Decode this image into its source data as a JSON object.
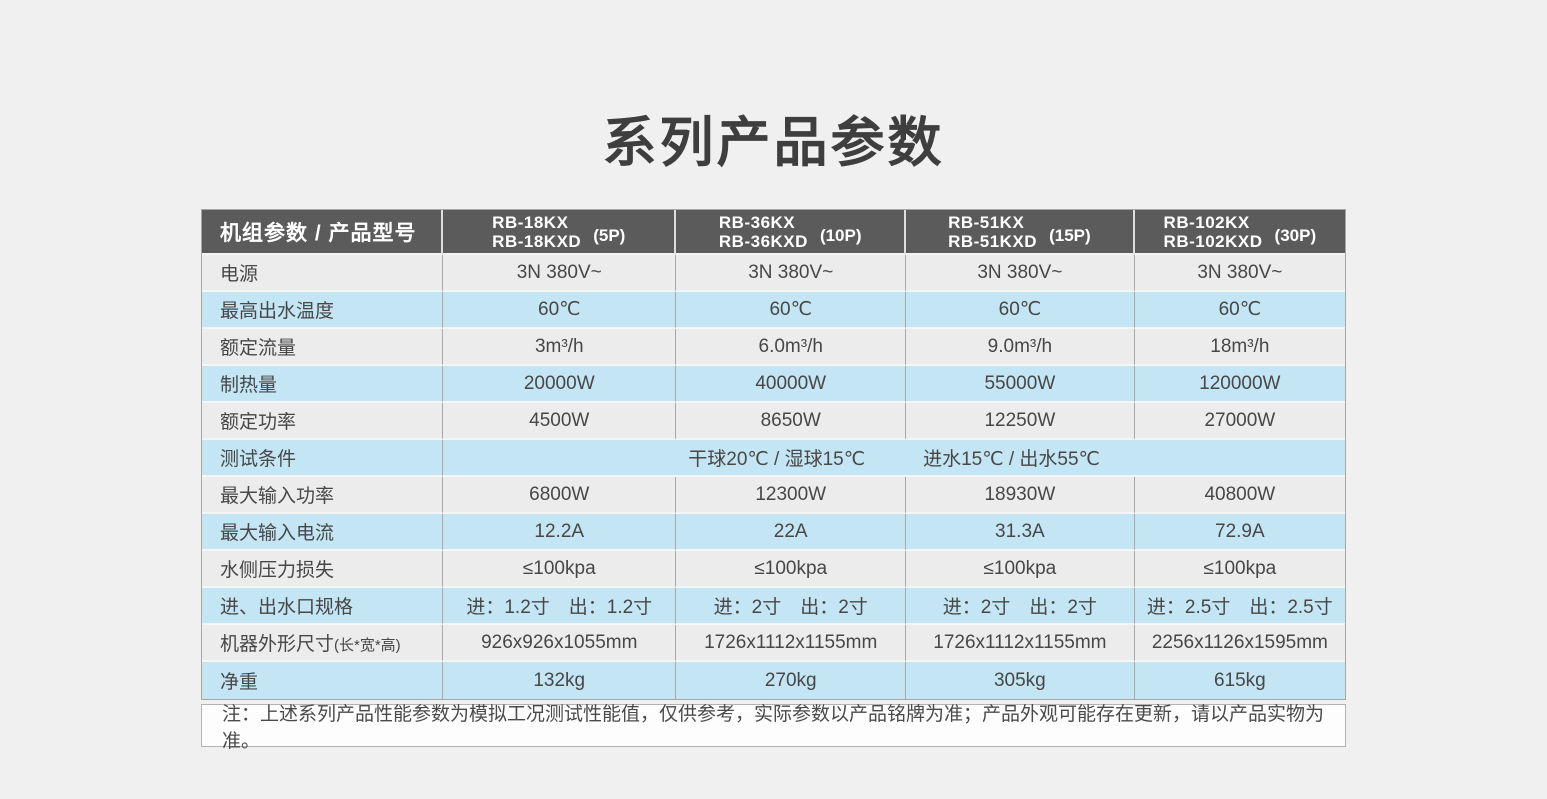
{
  "title": "系列产品参数",
  "colors": {
    "page_bg": "#f0f0f0",
    "header_bg": "#5b5b5b",
    "header_text": "#ffffff",
    "row_highlight_blue": "#c4e5f4",
    "row_plain_gray": "#ececec",
    "text_dark": "#474747",
    "border_gray": "#a6a6a6"
  },
  "table": {
    "header": {
      "param_label": "机组参数 / 产品型号",
      "models": [
        {
          "line1": "RB-18KX",
          "line2": "RB-18KXD",
          "power": "(5P)"
        },
        {
          "line1": "RB-36KX",
          "line2": "RB-36KXD",
          "power": "(10P)"
        },
        {
          "line1": "RB-51KX",
          "line2": "RB-51KXD",
          "power": "(15P)"
        },
        {
          "line1": "RB-102KX",
          "line2": "RB-102KXD",
          "power": "(30P)"
        }
      ]
    },
    "rows": [
      {
        "label": "电源",
        "highlight": false,
        "values": [
          "3N 380V~",
          "3N 380V~",
          "3N 380V~",
          "3N 380V~"
        ]
      },
      {
        "label": "最高出水温度",
        "highlight": true,
        "values": [
          "60℃",
          "60℃",
          "60℃",
          "60℃"
        ]
      },
      {
        "label": "额定流量",
        "highlight": false,
        "values": [
          "3m³/h",
          "6.0m³/h",
          "9.0m³/h",
          "18m³/h"
        ]
      },
      {
        "label": "制热量",
        "highlight": true,
        "values": [
          "20000W",
          "40000W",
          "55000W",
          "120000W"
        ]
      },
      {
        "label": "额定功率",
        "highlight": false,
        "values": [
          "4500W",
          "8650W",
          "12250W",
          "27000W"
        ]
      },
      {
        "label": "测试条件",
        "highlight": true,
        "merged": true,
        "values": [
          "干球20℃ / 湿球15℃",
          "进水15℃ / 出水55℃"
        ]
      },
      {
        "label": "最大输入功率",
        "highlight": false,
        "values": [
          "6800W",
          "12300W",
          "18930W",
          "40800W"
        ]
      },
      {
        "label": "最大输入电流",
        "highlight": true,
        "values": [
          "12.2A",
          "22A",
          "31.3A",
          "72.9A"
        ]
      },
      {
        "label": "水侧压力损失",
        "highlight": false,
        "values": [
          "≤100kpa",
          "≤100kpa",
          "≤100kpa",
          "≤100kpa"
        ]
      },
      {
        "label": "进、出水口规格",
        "highlight": true,
        "values": [
          "进：1.2寸　出：1.2寸",
          "进：2寸　出：2寸",
          "进：2寸　出：2寸",
          "进：2.5寸　出：2.5寸"
        ]
      },
      {
        "label": "机器外形尺寸",
        "label_suffix": "(长*宽*高)",
        "highlight": false,
        "values": [
          "926x926x1055mm",
          "1726x1112x1155mm",
          "1726x1112x1155mm",
          "2256x1126x1595mm"
        ]
      },
      {
        "label": "净重",
        "highlight": true,
        "values": [
          "132kg",
          "270kg",
          "305kg",
          "615kg"
        ]
      }
    ]
  },
  "note": "注：上述系列产品性能参数为模拟工况测试性能值，仅供参考，实际参数以产品铭牌为准；产品外观可能存在更新，请以产品实物为准。"
}
